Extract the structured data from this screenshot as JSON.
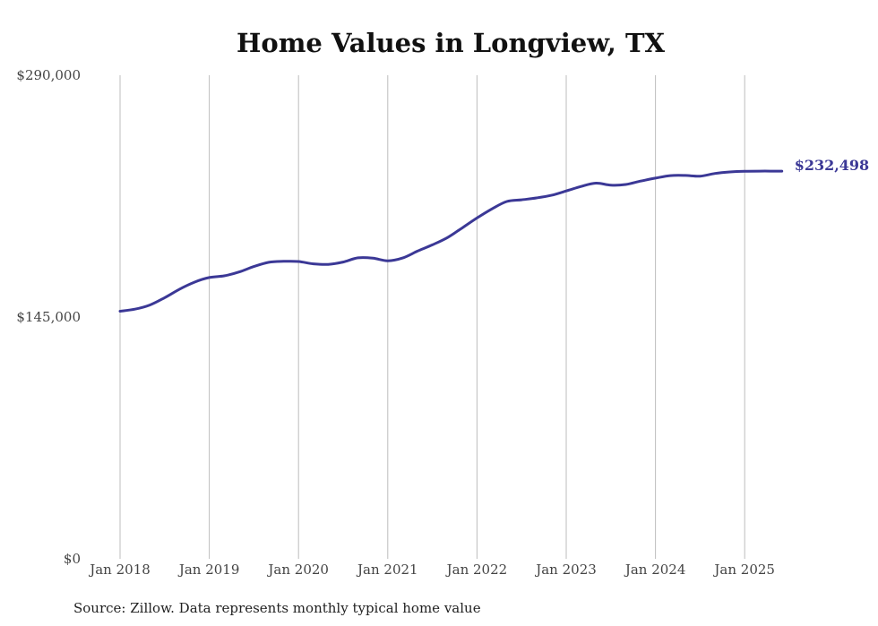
{
  "chart_data": {
    "type": "line",
    "title": "Home Values in Longview, TX",
    "source": "Source: Zillow. Data represents monthly typical home value",
    "ylim": [
      0,
      290000
    ],
    "yticks": [
      {
        "value": 0,
        "label": "$0"
      },
      {
        "value": 145000,
        "label": "$145,000"
      },
      {
        "value": 290000,
        "label": "$290,000"
      }
    ],
    "xlim": [
      "2018-01",
      "2025-06"
    ],
    "xticks": [
      {
        "value": "2018-01",
        "label": "Jan 2018"
      },
      {
        "value": "2019-01",
        "label": "Jan 2019"
      },
      {
        "value": "2020-01",
        "label": "Jan 2020"
      },
      {
        "value": "2021-01",
        "label": "Jan 2021"
      },
      {
        "value": "2022-01",
        "label": "Jan 2022"
      },
      {
        "value": "2023-01",
        "label": "Jan 2023"
      },
      {
        "value": "2024-01",
        "label": "Jan 2024"
      },
      {
        "value": "2025-01",
        "label": "Jan 2025"
      }
    ],
    "grid": "vertical",
    "line_color": "#3b3896",
    "end_label": "$232,498",
    "series": [
      {
        "x": [
          "2018-01",
          "2018-03",
          "2018-05",
          "2018-07",
          "2018-09",
          "2018-11",
          "2019-01",
          "2019-03",
          "2019-05",
          "2019-07",
          "2019-09",
          "2019-11",
          "2020-01",
          "2020-03",
          "2020-05",
          "2020-07",
          "2020-09",
          "2020-11",
          "2021-01",
          "2021-03",
          "2021-05",
          "2021-07",
          "2021-09",
          "2021-11",
          "2022-01",
          "2022-03",
          "2022-05",
          "2022-07",
          "2022-09",
          "2022-11",
          "2023-01",
          "2023-03",
          "2023-05",
          "2023-07",
          "2023-09",
          "2023-11",
          "2024-01",
          "2024-03",
          "2024-05",
          "2024-07",
          "2024-09",
          "2024-11",
          "2025-01",
          "2025-03",
          "2025-05",
          "2025-06"
        ],
        "values": [
          148500,
          149700,
          152200,
          156600,
          161700,
          165900,
          168700,
          169700,
          172000,
          175300,
          177800,
          178400,
          178300,
          176900,
          176600,
          178000,
          180500,
          180300,
          178700,
          180400,
          184500,
          188300,
          192600,
          198400,
          204400,
          209800,
          214300,
          215300,
          216400,
          218000,
          220600,
          223300,
          225300,
          224100,
          224500,
          226500,
          228300,
          229800,
          229900,
          229500,
          231100,
          232000,
          232400,
          232500,
          232500,
          232498
        ]
      }
    ]
  }
}
